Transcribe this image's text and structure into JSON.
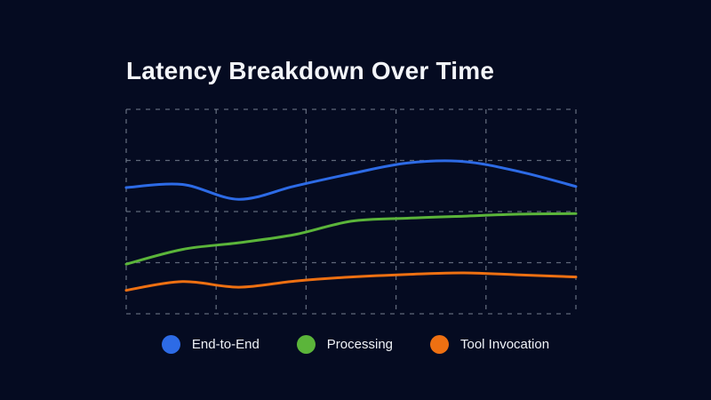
{
  "title": "Latency Breakdown Over Time",
  "colors": {
    "background": "#050b21",
    "title_text": "#f3f5f9",
    "grid": "#7d8898",
    "legend_text": "#f0f2f6"
  },
  "chart_data": {
    "type": "line",
    "title": "Latency Breakdown Over Time",
    "xlabel": "",
    "ylabel": "",
    "x": [
      0,
      1,
      2,
      3,
      4,
      5,
      6,
      7,
      8
    ],
    "x_tick_labels": [],
    "y_tick_labels": [],
    "ylim": [
      0,
      4
    ],
    "grid": "dashed",
    "grid_columns": 5,
    "grid_rows": 4,
    "legend_position": "bottom",
    "note": "Axes are unlabeled in the image; y values estimated in horizontal-gridline units (0 = bottom gridline, 4 = top gridline).",
    "series": [
      {
        "name": "End-to-End",
        "color": "#2d6be6",
        "values": [
          2.47,
          2.53,
          2.24,
          2.5,
          2.74,
          2.95,
          2.98,
          2.78,
          2.49
        ]
      },
      {
        "name": "Processing",
        "color": "#5bb53a",
        "values": [
          0.97,
          1.26,
          1.39,
          1.55,
          1.81,
          1.87,
          1.91,
          1.95,
          1.96
        ]
      },
      {
        "name": "Tool Invocation",
        "color": "#ee7012",
        "values": [
          0.46,
          0.63,
          0.52,
          0.64,
          0.72,
          0.77,
          0.8,
          0.76,
          0.72
        ]
      }
    ]
  }
}
